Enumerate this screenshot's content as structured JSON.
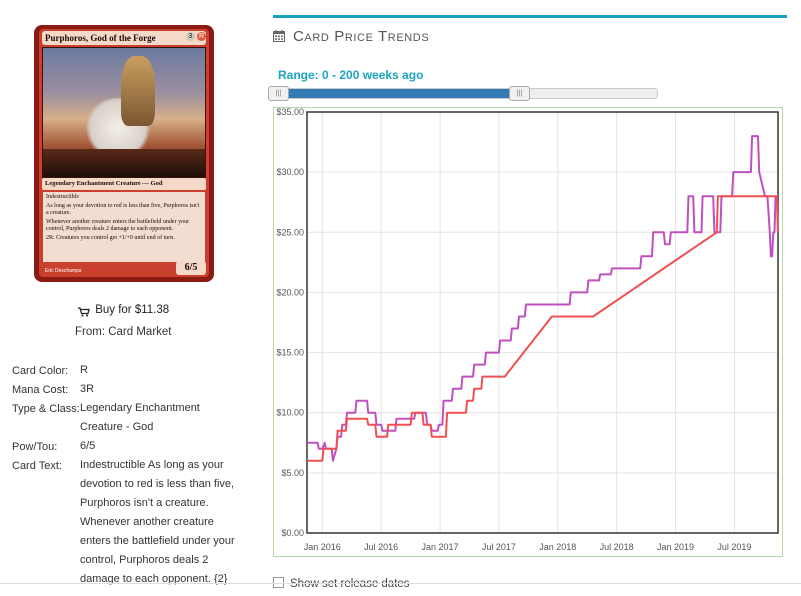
{
  "card": {
    "name": "Purphoros, God of the Forge",
    "mana_symbols": [
      "3",
      "R"
    ],
    "type_line": "Legendary Enchantment Creature — God",
    "text_lines": [
      "Indestructible",
      "As long as your devotion to red is less than five, Purphoros isn't a creature.",
      "Whenever another creature enters the battlefield under your control, Purphoros deals 2 damage to each opponent.",
      "2R: Creatures you control get +1/+0 until end of turn."
    ],
    "artist": "Eric Deschamps",
    "power_toughness": "6/5"
  },
  "buy": {
    "label": "Buy for $11.38",
    "source": "From: Card Market",
    "icon": "shopping-cart-icon"
  },
  "info": {
    "rows": [
      {
        "key": "Card Color:",
        "value": "R"
      },
      {
        "key": "Mana Cost:",
        "value": "3R"
      },
      {
        "key": "Type & Class:",
        "value": "Legendary Enchantment Creature - God"
      },
      {
        "key": "Pow/Tou:",
        "value": "6/5"
      },
      {
        "key": "Card Text:",
        "value": "Indestructible As long as your devotion to red is less than five, Purphoros isn't a creature. Whenever another creature enters the battlefield under your control, Purphoros deals 2 damage to each opponent. {2}"
      }
    ]
  },
  "section": {
    "title": "Card Price Trends",
    "icon": "calendar-icon"
  },
  "range": {
    "label": "Range: 0 - 200 weeks ago",
    "min": 0,
    "max": 200
  },
  "show_release": {
    "label": "Show set release dates",
    "checked": false
  },
  "colors": {
    "accent": "#17a2b8",
    "slider_fill": "#337ab7",
    "series_purple": "#c050c0",
    "series_red": "#f05050"
  },
  "chart_data": {
    "type": "line",
    "ylim": [
      0,
      35
    ],
    "yticks": [
      "$0.00",
      "$5.00",
      "$10.00",
      "$15.00",
      "$20.00",
      "$25.00",
      "$30.00",
      "$35.00"
    ],
    "ytick_values": [
      0,
      5,
      10,
      15,
      20,
      25,
      30,
      35
    ],
    "xlim": [
      2015.87,
      2019.87
    ],
    "xticks": [
      "Jan 2016",
      "Jul 2016",
      "Jan 2017",
      "Jul 2017",
      "Jan 2018",
      "Jul 2018",
      "Jan 2019",
      "Jul 2019"
    ],
    "xtick_values": [
      2016.0,
      2016.5,
      2017.0,
      2017.5,
      2018.0,
      2018.5,
      2019.0,
      2019.5
    ],
    "grid": true,
    "series": [
      {
        "color": "#c050c0",
        "x": [
          2015.87,
          2015.96,
          2015.97,
          2016.0,
          2016.02,
          2016.03,
          2016.08,
          2016.09,
          2016.12,
          2016.13,
          2016.16,
          2016.17,
          2016.2,
          2016.21,
          2016.28,
          2016.29,
          2016.38,
          2016.39,
          2016.45,
          2016.46,
          2016.5,
          2016.51,
          2016.62,
          2016.63,
          2016.78,
          2016.79,
          2016.88,
          2016.89,
          2016.92,
          2016.93,
          2016.98,
          2016.99,
          2017.02,
          2017.03,
          2017.1,
          2017.11,
          2017.18,
          2017.19,
          2017.28,
          2017.29,
          2017.38,
          2017.39,
          2017.5,
          2017.51,
          2017.6,
          2017.61,
          2017.66,
          2017.67,
          2017.72,
          2017.73,
          2017.8,
          2017.81,
          2017.88,
          2017.89,
          2017.95,
          2017.96,
          2018.1,
          2018.11,
          2018.25,
          2018.26,
          2018.35,
          2018.36,
          2018.45,
          2018.46,
          2018.55,
          2018.56,
          2018.7,
          2018.71,
          2018.8,
          2018.81,
          2018.9,
          2018.91,
          2018.95,
          2018.96,
          2018.98,
          2018.99,
          2019.1,
          2019.11,
          2019.15,
          2019.16,
          2019.22,
          2019.23,
          2019.26,
          2019.27,
          2019.32,
          2019.33,
          2019.38,
          2019.39,
          2019.48,
          2019.49,
          2019.6,
          2019.61,
          2019.64,
          2019.65,
          2019.7,
          2019.71,
          2019.76,
          2019.78,
          2019.8,
          2019.81,
          2019.82,
          2019.83,
          2019.84,
          2019.85,
          2019.87
        ],
        "y": [
          7.5,
          7.5,
          7,
          7,
          7.5,
          7,
          7,
          6,
          7,
          8,
          8,
          9,
          9,
          10,
          10,
          11,
          11,
          10,
          10,
          9,
          9,
          8.5,
          8.5,
          9.5,
          9.5,
          10,
          10,
          9,
          9,
          8.5,
          8.5,
          9,
          9,
          11,
          11,
          12,
          12,
          13,
          13,
          14,
          14,
          15,
          15,
          16,
          16,
          17,
          17,
          18,
          18,
          19,
          19,
          19,
          19,
          19,
          19,
          19,
          19,
          20,
          20,
          21,
          21,
          21.5,
          21.5,
          22,
          22,
          22,
          22,
          23,
          23,
          25,
          25,
          24,
          24,
          25,
          25,
          25,
          25,
          28,
          28,
          25,
          25,
          28,
          28,
          28,
          28,
          25,
          25,
          28,
          28,
          30,
          30,
          30,
          30,
          33,
          33,
          30,
          28,
          28,
          25,
          23,
          23,
          25,
          25,
          28,
          28
        ]
      },
      {
        "color": "#f05050",
        "x": [
          2015.87,
          2016.0,
          2016.01,
          2016.12,
          2016.13,
          2016.2,
          2016.21,
          2016.38,
          2016.39,
          2016.45,
          2016.46,
          2016.55,
          2016.56,
          2016.75,
          2016.76,
          2016.85,
          2016.86,
          2016.92,
          2016.93,
          2017.05,
          2017.06,
          2017.22,
          2017.23,
          2017.28,
          2017.29,
          2017.35,
          2017.36,
          2017.55,
          2017.95,
          2018.0,
          2018.3,
          2019.35,
          2019.36,
          2019.55,
          2019.86,
          2019.87
        ],
        "y": [
          6,
          6,
          7,
          7,
          8.5,
          8.5,
          9.5,
          9.5,
          9,
          9,
          8,
          8,
          9,
          9,
          10,
          10,
          9,
          9,
          8,
          8,
          10,
          10,
          11,
          11,
          12,
          12,
          13,
          13,
          18,
          18,
          18,
          25,
          28,
          28,
          28,
          25
        ]
      }
    ]
  }
}
